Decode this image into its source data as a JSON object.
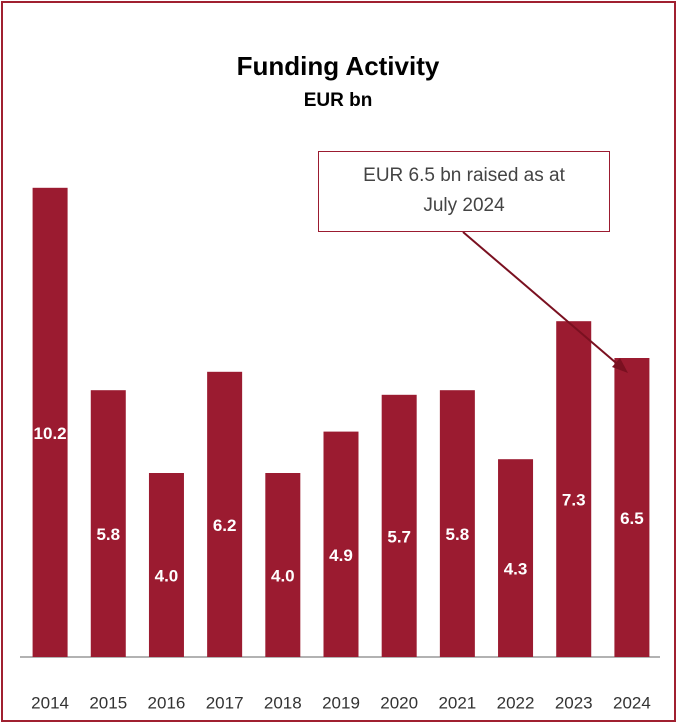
{
  "chart_data": {
    "type": "bar",
    "title": "Funding Activity",
    "subtitle": "EUR bn",
    "categories": [
      "2014",
      "2015",
      "2016",
      "2017",
      "2018",
      "2019",
      "2020",
      "2021",
      "2022",
      "2023",
      "2024"
    ],
    "values": [
      10.2,
      5.8,
      4.0,
      6.2,
      4.0,
      4.9,
      5.7,
      5.8,
      4.3,
      7.3,
      6.5
    ],
    "value_labels": [
      "10.2",
      "5.8",
      "4.0",
      "6.2",
      "4.0",
      "4.9",
      "5.7",
      "5.8",
      "4.3",
      "7.3",
      "6.5"
    ],
    "color": "#9b1b30",
    "ylim": [
      0,
      12
    ],
    "annotation": "EUR 6.5 bn raised as at July 2024"
  }
}
